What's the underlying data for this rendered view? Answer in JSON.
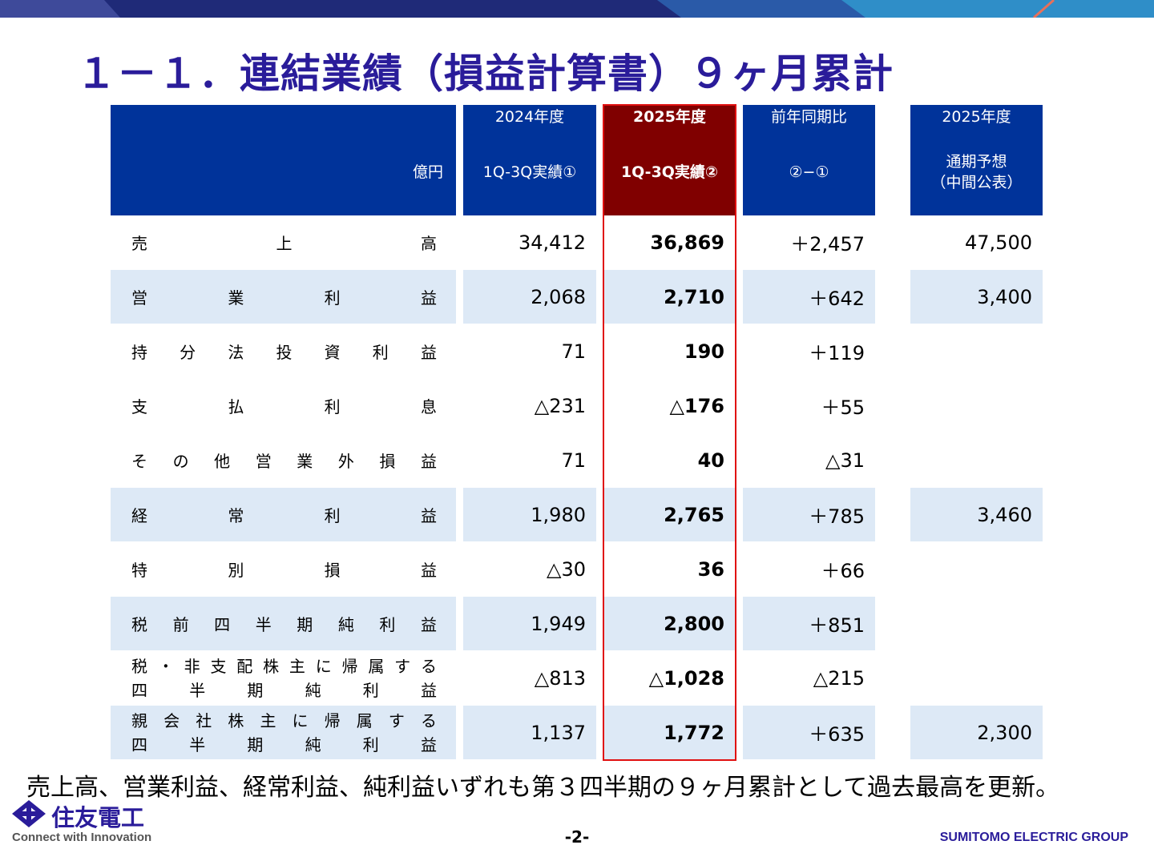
{
  "title": "１－１．連結業績（損益計算書）９ヶ月累計",
  "table": {
    "unit": "億円",
    "headers": [
      {
        "line1": "2024年度",
        "line2": "1Q-3Q実績①"
      },
      {
        "line1": "2025年度",
        "line2": "1Q-3Q実績②"
      },
      {
        "line1": "前年同期比",
        "line2": "②−①"
      },
      {
        "line1": "2025年度",
        "line2": "通期予想",
        "line3": "（中間公表）"
      }
    ],
    "rows": [
      {
        "label": "売上高",
        "v2024": "34,412",
        "v2025": "36,869",
        "diff": "＋2,457",
        "forecast": "47,500"
      },
      {
        "label": "営業利益",
        "v2024": "2,068",
        "v2025": "2,710",
        "diff": "＋642",
        "forecast": "3,400"
      },
      {
        "label": "持分法投資利益",
        "v2024": "71",
        "v2025": "190",
        "diff": "＋119",
        "forecast": ""
      },
      {
        "label": "支払利息",
        "v2024": "△231",
        "v2025": "△176",
        "diff": "＋55",
        "forecast": ""
      },
      {
        "label": "その他営業外損益",
        "v2024": "71",
        "v2025": "40",
        "diff": "△31",
        "forecast": ""
      },
      {
        "label": "経常利益",
        "v2024": "1,980",
        "v2025": "2,765",
        "diff": "＋785",
        "forecast": "3,460"
      },
      {
        "label": "特別損益",
        "v2024": "△30",
        "v2025": "36",
        "diff": "＋66",
        "forecast": ""
      },
      {
        "label": "税前四半期純利益",
        "v2024": "1,949",
        "v2025": "2,800",
        "diff": "＋851",
        "forecast": ""
      },
      {
        "label": "税・非支配株主に帰属する",
        "label2": "四半期純利益",
        "v2024": "△813",
        "v2025": "△1,028",
        "diff": "△215",
        "forecast": ""
      },
      {
        "label": "親会社株主に帰属する",
        "label2": "四半期純利益",
        "v2024": "1,137",
        "v2025": "1,772",
        "diff": "＋635",
        "forecast": "2,300"
      }
    ]
  },
  "footnote": "売上高、営業利益、経常利益、純利益いずれも第３四半期の９ヶ月累計として過去最高を更新。",
  "footer": {
    "company": "住友電工",
    "tagline": "Connect with Innovation",
    "page": "-2-",
    "group": "SUMITOMO ELECTRIC GROUP"
  },
  "colors": {
    "header_blue": "#00339a",
    "header_highlight": "#800000",
    "row_shade": "#dde9f6",
    "title": "#2a1c9a",
    "highlight_border": "#e01010"
  }
}
